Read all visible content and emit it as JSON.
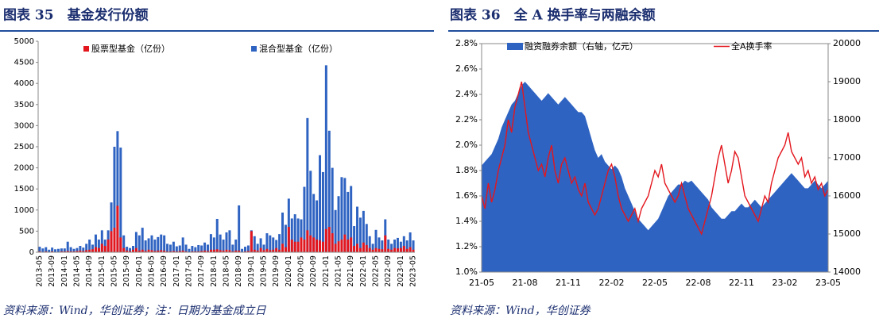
{
  "chart_data": [
    {
      "type": "bar",
      "title": "图表 35　基金发行份额",
      "source": "资料来源：Wind，华创证券；注：日期为基金成立日",
      "categories": [
        "2013-05",
        null,
        null,
        null,
        "2013-09",
        null,
        null,
        null,
        "2014-01",
        null,
        null,
        null,
        "2014-05",
        null,
        null,
        null,
        "2014-09",
        null,
        null,
        null,
        "2015-01",
        null,
        null,
        null,
        "2015-05",
        null,
        null,
        null,
        "2015-09",
        null,
        null,
        null,
        "2016-01",
        null,
        null,
        null,
        "2016-05",
        null,
        null,
        null,
        "2016-09",
        null,
        null,
        null,
        "2017-01",
        null,
        null,
        null,
        "2017-05",
        null,
        null,
        null,
        "2017-09",
        null,
        null,
        null,
        "2018-01",
        null,
        null,
        null,
        "2018-05",
        null,
        null,
        null,
        "2018-09",
        null,
        null,
        null,
        "2019-01",
        null,
        null,
        null,
        "2019-05",
        null,
        null,
        null,
        "2019-09",
        null,
        null,
        null,
        "2020-01",
        null,
        null,
        null,
        "2020-05",
        null,
        null,
        null,
        "2020-09",
        null,
        null,
        null,
        "2021-01",
        null,
        null,
        null,
        "2021-05",
        null,
        null,
        null,
        "2021-09",
        null,
        null,
        null,
        "2022-01",
        null,
        null,
        null,
        "2022-05",
        null,
        null,
        null,
        "2022-09",
        null,
        null,
        null,
        "2023-01",
        null,
        null,
        null,
        "2023-05"
      ],
      "series": [
        {
          "name": "混合型基金（亿份）",
          "color": "#2f63c2",
          "values": [
            130,
            90,
            120,
            60,
            110,
            70,
            80,
            90,
            90,
            250,
            120,
            80,
            100,
            150,
            110,
            200,
            300,
            180,
            420,
            300,
            520,
            300,
            520,
            1180,
            2500,
            2870,
            2480,
            400,
            130,
            100,
            150,
            480,
            400,
            580,
            280,
            330,
            400,
            300,
            360,
            420,
            400,
            200,
            180,
            250,
            140,
            160,
            350,
            180,
            80,
            150,
            120,
            170,
            160,
            230,
            180,
            430,
            350,
            790,
            420,
            300,
            470,
            520,
            180,
            300,
            1110,
            80,
            130,
            160,
            520,
            380,
            200,
            330,
            180,
            450,
            400,
            350,
            290,
            430,
            940,
            650,
            1270,
            800,
            900,
            800,
            780,
            1550,
            3180,
            1930,
            1380,
            1230,
            2300,
            1900,
            4430,
            2880,
            2000,
            1000,
            1330,
            1780,
            1760,
            1430,
            1570,
            620,
            1080,
            820,
            980,
            670,
            380,
            200,
            530,
            350,
            280,
            780,
            300,
            200,
            300,
            340,
            250,
            380,
            280,
            470,
            280
          ]
        },
        {
          "name": "股票型基金（亿份）",
          "color": "#e3161d",
          "values": [
            20,
            10,
            20,
            10,
            20,
            10,
            10,
            20,
            20,
            30,
            20,
            20,
            30,
            40,
            30,
            50,
            60,
            70,
            120,
            100,
            200,
            150,
            300,
            500,
            580,
            1100,
            350,
            100,
            40,
            30,
            60,
            100,
            40,
            60,
            30,
            60,
            50,
            30,
            40,
            50,
            40,
            20,
            20,
            30,
            20,
            30,
            40,
            20,
            10,
            20,
            20,
            20,
            30,
            40,
            30,
            60,
            60,
            70,
            50,
            40,
            60,
            50,
            20,
            40,
            40,
            10,
            20,
            30,
            500,
            60,
            40,
            100,
            50,
            80,
            50,
            60,
            100,
            60,
            200,
            120,
            600,
            300,
            250,
            250,
            350,
            300,
            520,
            400,
            350,
            300,
            280,
            250,
            550,
            600,
            450,
            200,
            260,
            300,
            420,
            300,
            350,
            150,
            200,
            100,
            230,
            170,
            100,
            60,
            100,
            80,
            70,
            400,
            80,
            60,
            100,
            90,
            100,
            150,
            80,
            120,
            60
          ]
        }
      ],
      "ylim": [
        0,
        5000
      ],
      "yticks": [
        0,
        500,
        1000,
        1500,
        2000,
        2500,
        3000,
        3500,
        4000,
        4500,
        5000
      ]
    },
    {
      "type": "combo",
      "title": "图表 36　全 A 换手率与两融余额",
      "source": "资料来源：Wind，华创证券",
      "categories": [
        "21-05",
        null,
        null,
        null,
        null,
        null,
        null,
        null,
        null,
        null,
        null,
        null,
        null,
        "21-08",
        null,
        null,
        null,
        null,
        null,
        null,
        null,
        null,
        null,
        null,
        null,
        null,
        "21-11",
        null,
        null,
        null,
        null,
        null,
        null,
        null,
        null,
        null,
        null,
        null,
        null,
        "22-02",
        null,
        null,
        null,
        null,
        null,
        null,
        null,
        null,
        null,
        null,
        null,
        null,
        "22-05",
        null,
        null,
        null,
        null,
        null,
        null,
        null,
        null,
        null,
        null,
        null,
        null,
        "22-08",
        null,
        null,
        null,
        null,
        null,
        null,
        null,
        null,
        null,
        null,
        null,
        null,
        "22-11",
        null,
        null,
        null,
        null,
        null,
        null,
        null,
        null,
        null,
        null,
        null,
        null,
        "23-02",
        null,
        null,
        null,
        null,
        null,
        null,
        null,
        null,
        null,
        null,
        null,
        null,
        "23-05"
      ],
      "series": [
        {
          "name": "融资融券余额（右轴，亿元）",
          "kind": "area",
          "axis": "y2",
          "color": "#2f63c2",
          "values": [
            16800,
            16900,
            17000,
            17100,
            17300,
            17500,
            17800,
            18000,
            18200,
            18400,
            18500,
            18700,
            18900,
            19000,
            18900,
            18800,
            18700,
            18600,
            18500,
            18600,
            18700,
            18600,
            18500,
            18400,
            18500,
            18600,
            18500,
            18400,
            18300,
            18200,
            18200,
            18100,
            17800,
            17500,
            17200,
            17000,
            17100,
            16900,
            16800,
            16700,
            16800,
            16700,
            16500,
            16200,
            16000,
            15800,
            15600,
            15400,
            15300,
            15200,
            15100,
            15200,
            15300,
            15400,
            15600,
            15800,
            16000,
            16100,
            16200,
            16300,
            16300,
            16400,
            16350,
            16400,
            16300,
            16200,
            16100,
            16000,
            15900,
            15700,
            15600,
            15500,
            15400,
            15400,
            15500,
            15600,
            15600,
            15700,
            15800,
            15700,
            15700,
            15800,
            15900,
            15800,
            15700,
            15800,
            15900,
            16000,
            16100,
            16200,
            16300,
            16400,
            16500,
            16600,
            16500,
            16400,
            16300,
            16200,
            16200,
            16300,
            16400,
            16300,
            16200,
            16300,
            16400
          ]
        },
        {
          "name": "全A换手率",
          "kind": "line",
          "color": "#e3161d",
          "values": [
            1.6,
            1.5,
            1.7,
            1.55,
            1.65,
            1.8,
            1.9,
            2.0,
            2.2,
            2.1,
            2.3,
            2.4,
            2.5,
            2.3,
            2.1,
            2.0,
            1.9,
            1.8,
            1.85,
            1.75,
            1.9,
            2.0,
            1.8,
            1.7,
            1.85,
            1.9,
            1.8,
            1.7,
            1.75,
            1.65,
            1.6,
            1.7,
            1.55,
            1.5,
            1.45,
            1.5,
            1.6,
            1.7,
            1.8,
            1.85,
            1.75,
            1.6,
            1.5,
            1.45,
            1.4,
            1.45,
            1.5,
            1.4,
            1.5,
            1.55,
            1.6,
            1.7,
            1.8,
            1.75,
            1.85,
            1.7,
            1.65,
            1.6,
            1.55,
            1.6,
            1.7,
            1.6,
            1.5,
            1.45,
            1.4,
            1.35,
            1.3,
            1.4,
            1.5,
            1.6,
            1.75,
            1.9,
            2.0,
            1.85,
            1.7,
            1.8,
            1.95,
            1.9,
            1.75,
            1.6,
            1.55,
            1.5,
            1.45,
            1.4,
            1.5,
            1.6,
            1.55,
            1.7,
            1.8,
            1.9,
            1.95,
            2.0,
            2.1,
            1.95,
            1.9,
            1.85,
            1.9,
            1.75,
            1.8,
            1.7,
            1.75,
            1.65,
            1.7,
            1.6,
            1.65
          ]
        }
      ],
      "ylim": [
        1.0,
        2.8
      ],
      "yticks": [
        {
          "value": 1.0,
          "label": "1.0%"
        },
        {
          "value": 1.2,
          "label": "1.2%"
        },
        {
          "value": 1.4,
          "label": "1.4%"
        },
        {
          "value": 1.6,
          "label": "1.6%"
        },
        {
          "value": 1.8,
          "label": "1.8%"
        },
        {
          "value": 2.0,
          "label": "2.0%"
        },
        {
          "value": 2.2,
          "label": "2.2%"
        },
        {
          "value": 2.4,
          "label": "2.4%"
        },
        {
          "value": 2.6,
          "label": "2.6%"
        },
        {
          "value": 2.8,
          "label": "2.8%"
        }
      ],
      "y2lim": [
        14000,
        20000
      ],
      "y2ticks": [
        14000,
        15000,
        16000,
        17000,
        18000,
        19000,
        20000
      ]
    }
  ]
}
